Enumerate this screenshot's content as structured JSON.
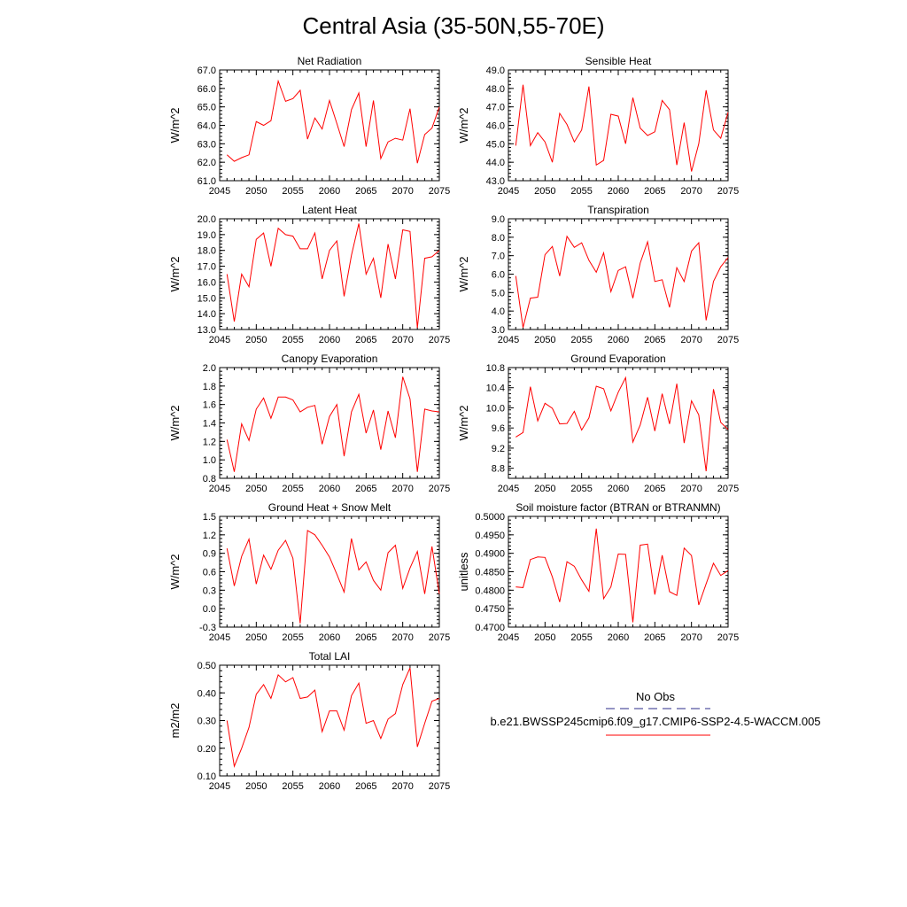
{
  "page_title": "Central Asia (35-50N,55-70E)",
  "legend": {
    "entries": [
      {
        "label": "No Obs",
        "color": "#2b2b8a",
        "dash": true
      },
      {
        "label": "b.e21.BWSSP245cmip6.f09_g17.CMIP6-SSP2-4.5-WACCM.005",
        "color": "#ff0000",
        "dash": false
      }
    ]
  },
  "chart_data": [
    {
      "type": "line",
      "title": "Net Radiation",
      "ylabel": "W/m^2",
      "xlim": [
        2045,
        2075
      ],
      "ylim": [
        61.0,
        67.0
      ],
      "xticks": [
        2045,
        2050,
        2055,
        2060,
        2065,
        2070,
        2075
      ],
      "yticks": [
        "61.0",
        "62.0",
        "63.0",
        "64.0",
        "65.0",
        "66.0",
        "67.0"
      ],
      "color": "#ff0000",
      "x": [
        2046,
        2047,
        2048,
        2049,
        2050,
        2051,
        2052,
        2053,
        2054,
        2055,
        2056,
        2057,
        2058,
        2059,
        2060,
        2061,
        2062,
        2063,
        2064,
        2065,
        2066,
        2067,
        2068,
        2069,
        2070,
        2071,
        2072,
        2073,
        2074,
        2075
      ],
      "y": [
        62.4,
        62.05,
        62.25,
        62.4,
        64.2,
        64.0,
        64.25,
        66.4,
        65.3,
        65.45,
        65.9,
        63.25,
        64.4,
        63.8,
        65.35,
        64.1,
        62.85,
        64.85,
        65.75,
        62.85,
        65.35,
        62.2,
        63.1,
        63.3,
        63.2,
        64.9,
        61.95,
        63.5,
        63.85,
        65.0
      ]
    },
    {
      "type": "line",
      "title": "Sensible Heat",
      "ylabel": "W/m^2",
      "xlim": [
        2045,
        2075
      ],
      "ylim": [
        43.0,
        49.0
      ],
      "xticks": [
        2045,
        2050,
        2055,
        2060,
        2065,
        2070,
        2075
      ],
      "yticks": [
        "43.0",
        "44.0",
        "45.0",
        "46.0",
        "47.0",
        "48.0",
        "49.0"
      ],
      "color": "#ff0000",
      "x": [
        2046,
        2047,
        2048,
        2049,
        2050,
        2051,
        2052,
        2053,
        2054,
        2055,
        2056,
        2057,
        2058,
        2059,
        2060,
        2061,
        2062,
        2063,
        2064,
        2065,
        2066,
        2067,
        2068,
        2069,
        2070,
        2071,
        2072,
        2073,
        2074,
        2075
      ],
      "y": [
        44.9,
        48.2,
        44.9,
        45.6,
        45.1,
        44.0,
        46.65,
        46.05,
        45.1,
        45.75,
        48.1,
        43.85,
        44.1,
        46.6,
        46.5,
        45.0,
        47.5,
        45.85,
        45.45,
        45.65,
        47.35,
        46.85,
        43.85,
        46.15,
        43.5,
        45.0,
        47.9,
        45.75,
        45.3,
        46.7
      ]
    },
    {
      "type": "line",
      "title": "Latent Heat",
      "ylabel": "W/m^2",
      "xlim": [
        2045,
        2075
      ],
      "ylim": [
        13.0,
        20.0
      ],
      "xticks": [
        2045,
        2050,
        2055,
        2060,
        2065,
        2070,
        2075
      ],
      "yticks": [
        "13.0",
        "14.0",
        "15.0",
        "16.0",
        "17.0",
        "18.0",
        "19.0",
        "20.0"
      ],
      "color": "#ff0000",
      "x": [
        2046,
        2047,
        2048,
        2049,
        2050,
        2051,
        2052,
        2053,
        2054,
        2055,
        2056,
        2057,
        2058,
        2059,
        2060,
        2061,
        2062,
        2063,
        2064,
        2065,
        2066,
        2067,
        2068,
        2069,
        2070,
        2071,
        2072,
        2073,
        2074,
        2075
      ],
      "y": [
        16.5,
        13.5,
        16.5,
        15.7,
        18.7,
        19.1,
        17.0,
        19.4,
        19.0,
        18.9,
        18.1,
        18.1,
        19.1,
        16.2,
        18.0,
        18.6,
        15.1,
        17.7,
        19.7,
        16.5,
        17.5,
        15.0,
        18.4,
        16.2,
        19.3,
        19.2,
        13.1,
        17.5,
        17.6,
        18.0
      ]
    },
    {
      "type": "line",
      "title": "Transpiration",
      "ylabel": "W/m^2",
      "xlim": [
        2045,
        2075
      ],
      "ylim": [
        3.0,
        9.0
      ],
      "xticks": [
        2045,
        2050,
        2055,
        2060,
        2065,
        2070,
        2075
      ],
      "yticks": [
        "3.0",
        "4.0",
        "5.0",
        "6.0",
        "7.0",
        "8.0",
        "9.0"
      ],
      "color": "#ff0000",
      "x": [
        2046,
        2047,
        2048,
        2049,
        2050,
        2051,
        2052,
        2053,
        2054,
        2055,
        2056,
        2057,
        2058,
        2059,
        2060,
        2061,
        2062,
        2063,
        2064,
        2065,
        2066,
        2067,
        2068,
        2069,
        2070,
        2071,
        2072,
        2073,
        2074,
        2075
      ],
      "y": [
        5.9,
        3.1,
        4.7,
        4.75,
        7.05,
        7.5,
        5.9,
        8.05,
        7.45,
        7.7,
        6.75,
        6.1,
        7.15,
        5.05,
        6.2,
        6.4,
        4.7,
        6.6,
        7.75,
        5.6,
        5.7,
        4.2,
        6.35,
        5.6,
        7.25,
        7.7,
        3.5,
        5.6,
        6.4,
        6.9
      ]
    },
    {
      "type": "line",
      "title": "Canopy Evaporation",
      "ylabel": "W/m^2",
      "xlim": [
        2045,
        2075
      ],
      "ylim": [
        0.8,
        2.0
      ],
      "xticks": [
        2045,
        2050,
        2055,
        2060,
        2065,
        2070,
        2075
      ],
      "yticks": [
        "0.8",
        "1.0",
        "1.2",
        "1.4",
        "1.6",
        "1.8",
        "2.0"
      ],
      "color": "#ff0000",
      "x": [
        2046,
        2047,
        2048,
        2049,
        2050,
        2051,
        2052,
        2053,
        2054,
        2055,
        2056,
        2057,
        2058,
        2059,
        2060,
        2061,
        2062,
        2063,
        2064,
        2065,
        2066,
        2067,
        2068,
        2069,
        2070,
        2071,
        2072,
        2073,
        2074,
        2075
      ],
      "y": [
        1.22,
        0.87,
        1.39,
        1.21,
        1.55,
        1.67,
        1.45,
        1.68,
        1.68,
        1.65,
        1.52,
        1.57,
        1.59,
        1.17,
        1.47,
        1.6,
        1.04,
        1.52,
        1.71,
        1.29,
        1.54,
        1.11,
        1.53,
        1.24,
        1.9,
        1.66,
        0.87,
        1.55,
        1.53,
        1.52
      ]
    },
    {
      "type": "line",
      "title": "Ground Evaporation",
      "ylabel": "W/m^2",
      "xlim": [
        2045,
        2075
      ],
      "ylim": [
        8.6,
        10.8
      ],
      "xticks": [
        2045,
        2050,
        2055,
        2060,
        2065,
        2070,
        2075
      ],
      "yticks": [
        "8.8",
        "9.2",
        "9.6",
        "10.0",
        "10.4",
        "10.8"
      ],
      "color": "#ff0000",
      "x": [
        2046,
        2047,
        2048,
        2049,
        2050,
        2051,
        2052,
        2053,
        2054,
        2055,
        2056,
        2057,
        2058,
        2059,
        2060,
        2061,
        2062,
        2063,
        2064,
        2065,
        2066,
        2067,
        2068,
        2069,
        2070,
        2071,
        2072,
        2073,
        2074,
        2075
      ],
      "y": [
        9.42,
        9.51,
        10.42,
        9.74,
        10.09,
        9.99,
        9.68,
        9.69,
        9.93,
        9.56,
        9.8,
        10.43,
        10.38,
        9.94,
        10.31,
        10.6,
        9.32,
        9.66,
        10.21,
        9.54,
        10.28,
        9.68,
        10.48,
        9.3,
        10.14,
        9.86,
        8.74,
        10.37,
        9.71,
        9.57
      ]
    },
    {
      "type": "line",
      "title": "Ground Heat + Snow Melt",
      "ylabel": "W/m^2",
      "xlim": [
        2045,
        2075
      ],
      "ylim": [
        -0.3,
        1.5
      ],
      "xticks": [
        2045,
        2050,
        2055,
        2060,
        2065,
        2070,
        2075
      ],
      "yticks": [
        "-0.3",
        "0.0",
        "0.3",
        "0.6",
        "0.9",
        "1.2",
        "1.5"
      ],
      "color": "#ff0000",
      "x": [
        2046,
        2047,
        2048,
        2049,
        2050,
        2051,
        2052,
        2053,
        2054,
        2055,
        2056,
        2057,
        2058,
        2059,
        2060,
        2061,
        2062,
        2063,
        2064,
        2065,
        2066,
        2067,
        2068,
        2069,
        2070,
        2071,
        2072,
        2073,
        2074,
        2075
      ],
      "y": [
        0.98,
        0.37,
        0.85,
        1.13,
        0.4,
        0.87,
        0.64,
        0.95,
        1.11,
        0.82,
        -0.24,
        1.27,
        1.2,
        1.03,
        0.84,
        0.56,
        0.27,
        1.14,
        0.63,
        0.76,
        0.46,
        0.3,
        0.91,
        1.03,
        0.33,
        0.66,
        0.93,
        0.24,
        1.01,
        0.24
      ]
    },
    {
      "type": "line",
      "title": "Soil moisture factor (BTRAN or BTRANMN)",
      "ylabel": "unitless",
      "xlim": [
        2045,
        2075
      ],
      "ylim": [
        0.47,
        0.5
      ],
      "xticks": [
        2045,
        2050,
        2055,
        2060,
        2065,
        2070,
        2075
      ],
      "yticks": [
        "0.4700",
        "0.4750",
        "0.4800",
        "0.4850",
        "0.4900",
        "0.4950",
        "0.5000"
      ],
      "color": "#ff0000",
      "x": [
        2046,
        2047,
        2048,
        2049,
        2050,
        2051,
        2052,
        2053,
        2054,
        2055,
        2056,
        2057,
        2058,
        2059,
        2060,
        2061,
        2062,
        2063,
        2064,
        2065,
        2066,
        2067,
        2068,
        2069,
        2070,
        2071,
        2072,
        2073,
        2074,
        2075
      ],
      "y": [
        0.4809,
        0.4807,
        0.4883,
        0.489,
        0.4889,
        0.4836,
        0.4768,
        0.4877,
        0.4865,
        0.4828,
        0.4797,
        0.4967,
        0.4777,
        0.4809,
        0.4898,
        0.4897,
        0.4713,
        0.4922,
        0.4925,
        0.4788,
        0.4895,
        0.4796,
        0.4786,
        0.4914,
        0.4894,
        0.476,
        0.4817,
        0.4873,
        0.484,
        0.4853
      ]
    },
    {
      "type": "line",
      "title": "Total LAI",
      "ylabel": "m2/m2",
      "xlim": [
        2045,
        2075
      ],
      "ylim": [
        0.1,
        0.5
      ],
      "xticks": [
        2045,
        2050,
        2055,
        2060,
        2065,
        2070,
        2075
      ],
      "yticks": [
        "0.10",
        "0.20",
        "0.30",
        "0.40",
        "0.50"
      ],
      "color": "#ff0000",
      "x": [
        2046,
        2047,
        2048,
        2049,
        2050,
        2051,
        2052,
        2053,
        2054,
        2055,
        2056,
        2057,
        2058,
        2059,
        2060,
        2061,
        2062,
        2063,
        2064,
        2065,
        2066,
        2067,
        2068,
        2069,
        2070,
        2071,
        2072,
        2073,
        2074,
        2075
      ],
      "y": [
        0.3,
        0.135,
        0.2,
        0.275,
        0.395,
        0.43,
        0.38,
        0.465,
        0.44,
        0.455,
        0.38,
        0.385,
        0.41,
        0.26,
        0.335,
        0.335,
        0.265,
        0.39,
        0.435,
        0.29,
        0.3,
        0.235,
        0.305,
        0.325,
        0.43,
        0.49,
        0.205,
        0.29,
        0.37,
        0.38
      ]
    }
  ]
}
